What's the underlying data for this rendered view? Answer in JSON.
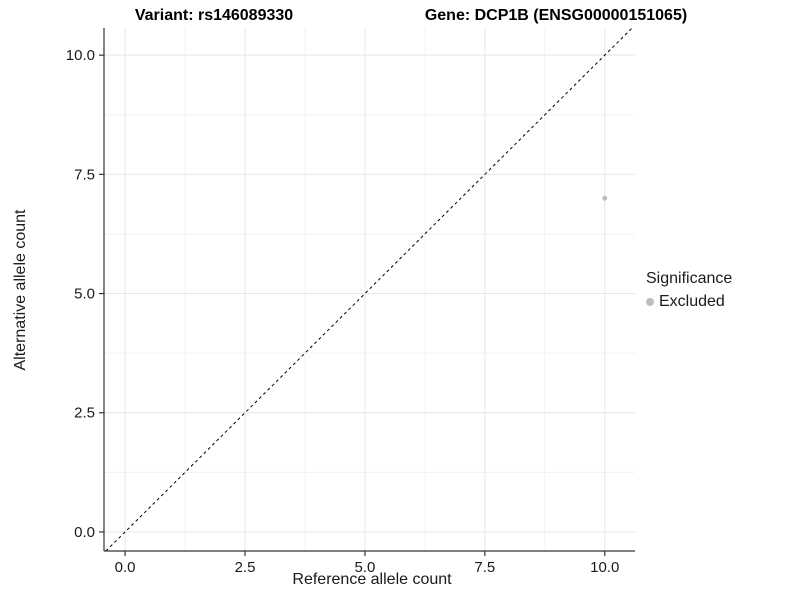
{
  "figure": {
    "background": "#ffffff"
  },
  "chart_data": {
    "type": "scatter",
    "title_left": "Variant: rs146089330",
    "title_right": "Gene: DCP1B (ENSG00000151065)",
    "xlabel": "Reference allele count",
    "ylabel": "Alternative allele count",
    "xlim": [
      -0.44,
      10.63
    ],
    "ylim": [
      -0.4,
      10.57
    ],
    "x_ticks": {
      "values": [
        0,
        2.5,
        5,
        7.5,
        10
      ],
      "labels": [
        "0.0",
        "2.5",
        "5.0",
        "7.5",
        "10.0"
      ]
    },
    "y_ticks": {
      "values": [
        0,
        2.5,
        5,
        7.5,
        10
      ],
      "labels": [
        "0.0",
        "2.5",
        "5.0",
        "7.5",
        "10.0"
      ]
    },
    "grid": {
      "major": true,
      "minor": true,
      "major_color": "#e6e6e6",
      "minor_color": "#f2f2f2"
    },
    "reference_line": {
      "kind": "abline",
      "slope": 1,
      "intercept": 0,
      "style": "dashed",
      "dash": "3,3",
      "color": "#000000"
    },
    "series": [
      {
        "name": "Excluded",
        "color": "#bebebe",
        "point_radius": 2.5,
        "points": [
          {
            "x": 10,
            "y": 7
          }
        ]
      }
    ],
    "legend": {
      "title": "Significance",
      "position": "right",
      "entries": [
        {
          "label": "Excluded",
          "color": "#bebebe"
        }
      ]
    },
    "axis_color": "#333333",
    "tick_label_color": "#1a1a1a",
    "tick_label_size": 15
  }
}
